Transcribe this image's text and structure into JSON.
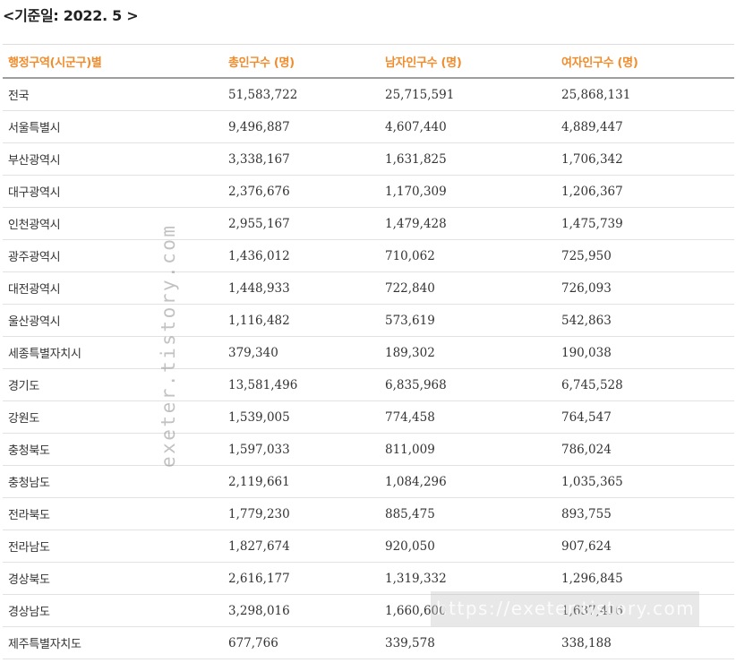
{
  "caption": "<기준일: 2022. 5 >",
  "table": {
    "headers": [
      "행정구역(시군구)별",
      "총인구수 (명)",
      "남자인구수 (명)",
      "여자인구수 (명)"
    ],
    "rows": [
      [
        "전국",
        "51,583,722",
        "25,715,591",
        "25,868,131"
      ],
      [
        "서울특별시",
        "9,496,887",
        "4,607,440",
        "4,889,447"
      ],
      [
        "부산광역시",
        "3,338,167",
        "1,631,825",
        "1,706,342"
      ],
      [
        "대구광역시",
        "2,376,676",
        "1,170,309",
        "1,206,367"
      ],
      [
        "인천광역시",
        "2,955,167",
        "1,479,428",
        "1,475,739"
      ],
      [
        "광주광역시",
        "1,436,012",
        "710,062",
        "725,950"
      ],
      [
        "대전광역시",
        "1,448,933",
        "722,840",
        "726,093"
      ],
      [
        "울산광역시",
        "1,116,482",
        "573,619",
        "542,863"
      ],
      [
        "세종특별자치시",
        "379,340",
        "189,302",
        "190,038"
      ],
      [
        "경기도",
        "13,581,496",
        "6,835,968",
        "6,745,528"
      ],
      [
        "강원도",
        "1,539,005",
        "774,458",
        "764,547"
      ],
      [
        "충청북도",
        "1,597,033",
        "811,009",
        "786,024"
      ],
      [
        "충청남도",
        "2,119,661",
        "1,084,296",
        "1,035,365"
      ],
      [
        "전라북도",
        "1,779,230",
        "885,475",
        "893,755"
      ],
      [
        "전라남도",
        "1,827,674",
        "920,050",
        "907,624"
      ],
      [
        "경상북도",
        "2,616,177",
        "1,319,332",
        "1,296,845"
      ],
      [
        "경상남도",
        "3,298,016",
        "1,660,600",
        "1,637,416"
      ],
      [
        "제주특별자치도",
        "677,766",
        "339,578",
        "338,188"
      ]
    ]
  },
  "watermark": {
    "vertical": "exeter.tistory.com",
    "banner": "https://exeter.tistory.com"
  },
  "colors": {
    "header_text": "#f08c2c",
    "body_text": "#333333",
    "header_rule": "#9e9e9e",
    "row_rule": "#e2e2e2"
  }
}
